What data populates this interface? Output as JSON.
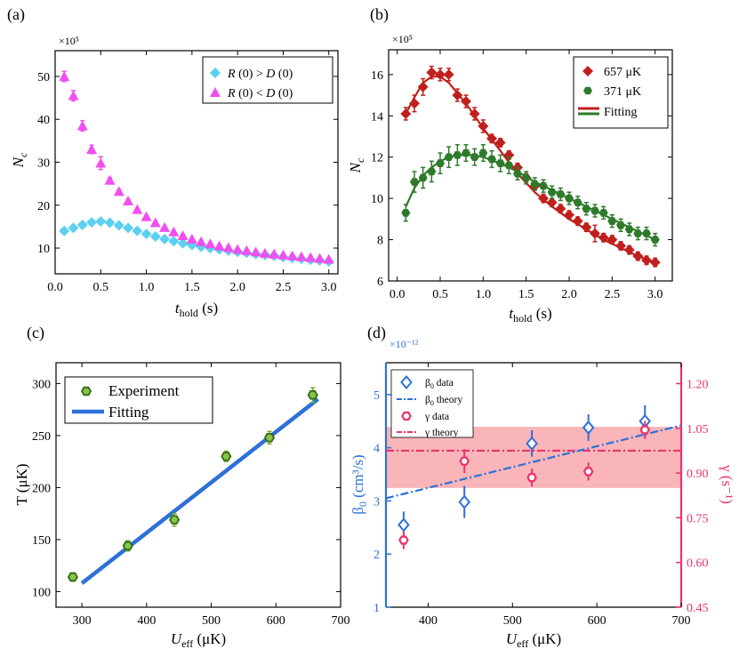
{
  "chart_data": [
    {
      "id": "a",
      "type": "scatter",
      "panel_label": "(a)",
      "multiplier": "×10⁵",
      "xlabel": {
        "main": "t",
        "sub": "hold",
        "unit": "(s)"
      },
      "ylabel": {
        "main": "N",
        "sub": "c"
      },
      "xlim": [
        0,
        3.1
      ],
      "ylim": [
        4,
        56
      ],
      "xticks": [
        "0.0",
        "0.5",
        "1.0",
        "1.5",
        "2.0",
        "2.5",
        "3.0"
      ],
      "yticks": [
        "10",
        "20",
        "30",
        "40",
        "50"
      ],
      "series": [
        {
          "name": "R (0) > D (0)",
          "label_parts": [
            "R",
            " (0) > ",
            "D",
            " (0)"
          ],
          "marker": "diamond",
          "color": "#5bd0f0",
          "x": [
            0.1,
            0.2,
            0.3,
            0.4,
            0.5,
            0.6,
            0.7,
            0.8,
            0.9,
            1.0,
            1.1,
            1.2,
            1.3,
            1.4,
            1.5,
            1.6,
            1.7,
            1.8,
            1.9,
            2.0,
            2.1,
            2.2,
            2.3,
            2.4,
            2.5,
            2.6,
            2.7,
            2.8,
            2.9,
            3.0
          ],
          "y": [
            14.0,
            14.7,
            15.4,
            16.0,
            16.2,
            15.9,
            15.3,
            14.7,
            14.0,
            13.3,
            12.7,
            12.1,
            11.6,
            11.1,
            10.7,
            10.3,
            10.0,
            9.7,
            9.4,
            9.1,
            8.9,
            8.6,
            8.4,
            8.2,
            7.9,
            7.7,
            7.5,
            7.3,
            7.1,
            6.9
          ],
          "err": [
            0.4,
            0.4,
            0.4,
            0.4,
            0.4,
            0.4,
            0.4,
            0.4,
            0.4,
            0.4,
            0.4,
            0.4,
            0.4,
            0.4,
            0.4,
            0.4,
            0.4,
            0.4,
            0.4,
            0.4,
            0.4,
            0.4,
            0.4,
            0.4,
            0.4,
            0.4,
            0.4,
            0.4,
            0.4,
            0.4
          ]
        },
        {
          "name": "R (0) < D (0)",
          "label_parts": [
            "R",
            " (0) < ",
            "D",
            " (0)"
          ],
          "marker": "triangle",
          "color": "#f04ff0",
          "x": [
            0.1,
            0.2,
            0.3,
            0.4,
            0.5,
            0.6,
            0.7,
            0.8,
            0.9,
            1.0,
            1.1,
            1.2,
            1.3,
            1.4,
            1.5,
            1.6,
            1.7,
            1.8,
            1.9,
            2.0,
            2.1,
            2.2,
            2.3,
            2.4,
            2.5,
            2.6,
            2.7,
            2.8,
            2.9,
            3.0
          ],
          "y": [
            50.0,
            45.5,
            38.5,
            33.0,
            29.8,
            25.8,
            23.2,
            21.0,
            19.0,
            17.3,
            15.9,
            14.8,
            13.8,
            12.9,
            12.1,
            11.5,
            11.0,
            10.5,
            10.1,
            9.7,
            9.4,
            9.1,
            8.8,
            8.6,
            8.4,
            8.2,
            8.0,
            7.8,
            7.6,
            7.4
          ],
          "err": [
            1.2,
            1.2,
            1.2,
            1.0,
            1.5,
            0.6,
            0.5,
            0.4,
            0.3,
            0.3,
            0.3,
            0.3,
            0.3,
            0.3,
            0.3,
            0.3,
            0.3,
            0.3,
            0.3,
            0.3,
            0.3,
            0.3,
            0.3,
            0.3,
            0.3,
            0.3,
            0.3,
            0.3,
            0.3,
            0.3
          ]
        }
      ]
    },
    {
      "id": "b",
      "type": "scatter",
      "panel_label": "(b)",
      "multiplier": "×10⁵",
      "xlabel": {
        "main": "t",
        "sub": "hold",
        "unit": "(s)"
      },
      "ylabel": {
        "main": "N",
        "sub": "c"
      },
      "xlim": [
        -0.1,
        3.2
      ],
      "ylim": [
        6,
        17.2
      ],
      "xticks": [
        "0.0",
        "0.5",
        "1.0",
        "1.5",
        "2.0",
        "2.5",
        "3.0"
      ],
      "yticks": [
        "6",
        "8",
        "10",
        "12",
        "14",
        "16"
      ],
      "series": [
        {
          "name": "657 μK",
          "marker": "diamond",
          "color": "#c0201d",
          "x": [
            0.1,
            0.2,
            0.3,
            0.4,
            0.5,
            0.6,
            0.7,
            0.8,
            0.9,
            1.0,
            1.1,
            1.2,
            1.3,
            1.4,
            1.5,
            1.6,
            1.7,
            1.8,
            1.9,
            2.0,
            2.1,
            2.2,
            2.3,
            2.4,
            2.5,
            2.6,
            2.7,
            2.8,
            2.9,
            3.0
          ],
          "y": [
            14.1,
            14.6,
            15.4,
            16.1,
            16.0,
            16.0,
            15.0,
            14.7,
            14.1,
            13.5,
            12.9,
            12.7,
            12.1,
            11.5,
            11.0,
            10.6,
            10.0,
            9.8,
            9.5,
            9.2,
            8.9,
            8.6,
            8.3,
            8.1,
            8.0,
            7.7,
            7.5,
            7.2,
            7.0,
            6.9
          ],
          "err": [
            0.3,
            0.4,
            0.4,
            0.3,
            0.3,
            0.3,
            0.3,
            0.3,
            0.3,
            0.3,
            0.2,
            0.2,
            0.2,
            0.2,
            0.2,
            0.2,
            0.2,
            0.2,
            0.2,
            0.2,
            0.2,
            0.2,
            0.4,
            0.2,
            0.2,
            0.2,
            0.2,
            0.2,
            0.2,
            0.2
          ]
        },
        {
          "name": "371 μK",
          "marker": "hexagon",
          "color": "#2e7a2a",
          "x": [
            0.1,
            0.2,
            0.3,
            0.4,
            0.5,
            0.6,
            0.7,
            0.8,
            0.9,
            1.0,
            1.1,
            1.2,
            1.3,
            1.4,
            1.5,
            1.6,
            1.7,
            1.8,
            1.9,
            2.0,
            2.1,
            2.2,
            2.3,
            2.4,
            2.5,
            2.6,
            2.7,
            2.8,
            2.9,
            3.0
          ],
          "y": [
            9.3,
            10.8,
            11.0,
            11.3,
            11.7,
            12.0,
            12.1,
            12.2,
            12.0,
            12.2,
            11.9,
            11.7,
            11.6,
            11.2,
            11.0,
            10.7,
            10.6,
            10.3,
            10.2,
            10.0,
            9.8,
            9.5,
            9.4,
            9.3,
            8.9,
            8.7,
            8.5,
            8.3,
            8.3,
            8.0
          ],
          "err": [
            0.4,
            0.5,
            0.5,
            0.5,
            0.5,
            0.5,
            0.5,
            0.4,
            0.4,
            0.4,
            0.4,
            0.4,
            0.4,
            0.3,
            0.3,
            0.3,
            0.3,
            0.3,
            0.3,
            0.3,
            0.3,
            0.3,
            0.3,
            0.3,
            0.3,
            0.3,
            0.3,
            0.3,
            0.3,
            0.3
          ]
        },
        {
          "name": "Fitting",
          "legend_colors": [
            "#c0201d",
            "#2e7a2a"
          ]
        }
      ],
      "fits": [
        {
          "color": "#c0201d",
          "x": [
            0.1,
            0.2,
            0.3,
            0.4,
            0.5,
            0.6,
            0.7,
            0.8,
            0.9,
            1.0,
            1.2,
            1.4,
            1.6,
            1.8,
            2.0,
            2.2,
            2.4,
            2.6,
            2.8,
            3.0
          ],
          "y": [
            14.1,
            14.9,
            15.6,
            15.9,
            15.9,
            15.6,
            15.1,
            14.6,
            14.0,
            13.4,
            12.3,
            11.2,
            10.3,
            9.6,
            9.0,
            8.5,
            8.0,
            7.6,
            7.2,
            6.9
          ]
        },
        {
          "color": "#2e7a2a",
          "x": [
            0.1,
            0.2,
            0.3,
            0.4,
            0.5,
            0.6,
            0.7,
            0.8,
            0.9,
            1.0,
            1.2,
            1.4,
            1.6,
            1.8,
            2.0,
            2.2,
            2.4,
            2.6,
            2.8,
            3.0
          ],
          "y": [
            9.6,
            10.5,
            11.1,
            11.5,
            11.8,
            12.0,
            12.1,
            12.1,
            12.1,
            12.0,
            11.7,
            11.3,
            10.8,
            10.4,
            10.0,
            9.6,
            9.2,
            8.8,
            8.4,
            8.0
          ]
        }
      ]
    },
    {
      "id": "c",
      "type": "scatter",
      "panel_label": "(c)",
      "xlabel": {
        "main": "U",
        "sub": "eff",
        "unit": "(μK)"
      },
      "ylabel": {
        "main": "T (μK)"
      },
      "xlim": [
        260,
        700
      ],
      "ylim": [
        85,
        320
      ],
      "xticks": [
        "300",
        "400",
        "500",
        "600",
        "700"
      ],
      "yticks": [
        "100",
        "150",
        "200",
        "250",
        "300"
      ],
      "series": [
        {
          "name": "Experiment",
          "marker": "hexagon",
          "color": "#74b12a",
          "x": [
            286,
            371,
            443,
            523,
            590,
            657
          ],
          "y": [
            114,
            144,
            169,
            230,
            248,
            289
          ],
          "err": [
            4,
            5,
            6,
            5,
            6,
            7
          ]
        },
        {
          "name": "Fitting",
          "color": "#2d70d8",
          "fit": {
            "x": [
              300,
              665
            ],
            "y": [
              108,
              285
            ]
          }
        }
      ]
    },
    {
      "id": "d",
      "type": "scatter",
      "panel_label": "(d)",
      "multiplier": "×10⁻¹²",
      "xlabel": {
        "main": "U",
        "sub": "eff",
        "unit": "(μK)"
      },
      "ylabel_left": {
        "main": "β",
        "sub": "0",
        "unit": "(cm³/s)"
      },
      "ylabel_right": {
        "main": "γ (s⁻¹)"
      },
      "xlim": [
        350,
        700
      ],
      "ylim_left": [
        1,
        5.6
      ],
      "ylim_right": [
        0.45,
        1.27
      ],
      "xticks": [
        "400",
        "500",
        "600",
        "700"
      ],
      "yticks_left": [
        "1",
        "2",
        "3",
        "4",
        "5"
      ],
      "yticks_right": [
        "0.45",
        "0.60",
        "0.75",
        "0.90",
        "1.05",
        "1.20"
      ],
      "left_color": "#2d70d8",
      "right_color": "#e8336e",
      "band": {
        "ymin": 0.85,
        "ymax": 1.055,
        "color": "#f7a3a6"
      },
      "gamma_theory": 0.975,
      "beta_theory": {
        "x": [
          350,
          700
        ],
        "y": [
          3.05,
          4.42
        ]
      },
      "series": [
        {
          "name": "β0 data",
          "label_parts": [
            "β",
            "0",
            " data"
          ],
          "marker": "diamond-open",
          "axis": "left",
          "x": [
            371,
            443,
            523,
            590,
            657
          ],
          "y": [
            2.55,
            2.98,
            4.08,
            4.38,
            4.5
          ],
          "err": [
            0.25,
            0.3,
            0.25,
            0.25,
            0.3
          ]
        },
        {
          "name": "β0 theory",
          "label_parts": [
            "β",
            "0",
            " theory"
          ],
          "line": "dashdot",
          "axis": "left"
        },
        {
          "name": "γ data",
          "marker": "hexagon-open",
          "axis": "right",
          "x": [
            371,
            443,
            523,
            590,
            657
          ],
          "y": [
            0.675,
            0.94,
            0.885,
            0.905,
            1.045
          ],
          "err": [
            0.03,
            0.04,
            0.03,
            0.03,
            0.03
          ]
        },
        {
          "name": "γ theory",
          "line": "dashdot",
          "axis": "right"
        }
      ]
    }
  ]
}
